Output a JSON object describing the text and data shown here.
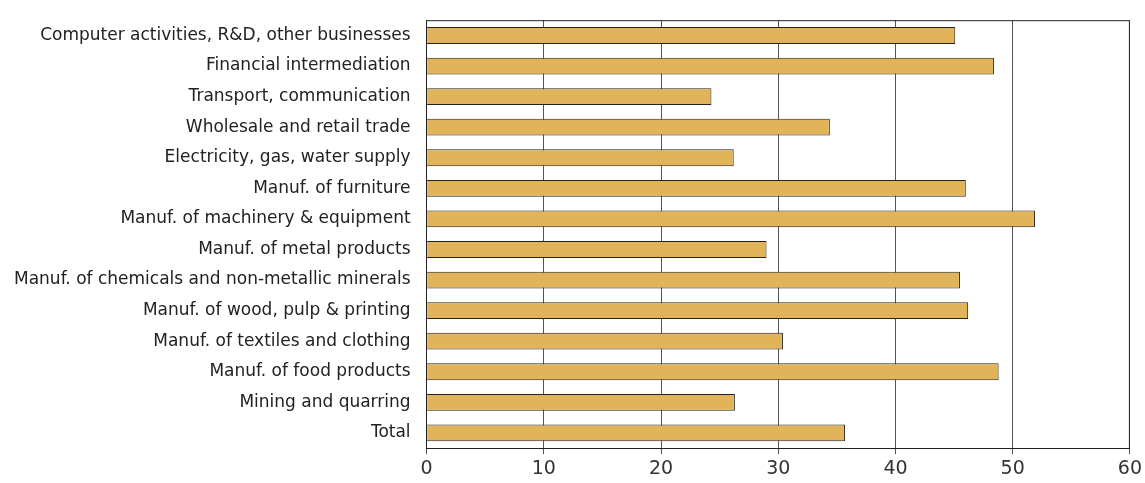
{
  "chart_data": {
    "type": "bar",
    "orientation": "horizontal",
    "categories": [
      "Computer activities, R&D, other businesses",
      "Financial intermediation",
      "Transport, communication",
      "Wholesale and retail trade",
      "Electricity, gas, water supply",
      "Manuf. of furniture",
      "Manuf. of machinery & equipment",
      "Manuf. of metal products",
      "Manuf. of chemicals and non-metallic minerals",
      "Manuf. of wood, pulp & printing",
      "Manuf. of textiles and clothing",
      "Manuf. of food products",
      "Mining and quarring",
      "Total"
    ],
    "values": [
      45.1,
      48.4,
      24.3,
      34.4,
      26.2,
      46.0,
      51.9,
      29.0,
      45.5,
      46.2,
      30.4,
      48.8,
      26.3,
      35.7
    ],
    "color": "#e1b45a",
    "xlim": [
      0,
      60
    ],
    "xticks": [
      0,
      10,
      20,
      30,
      40,
      50,
      60
    ],
    "grid": "x",
    "legend": false
  }
}
